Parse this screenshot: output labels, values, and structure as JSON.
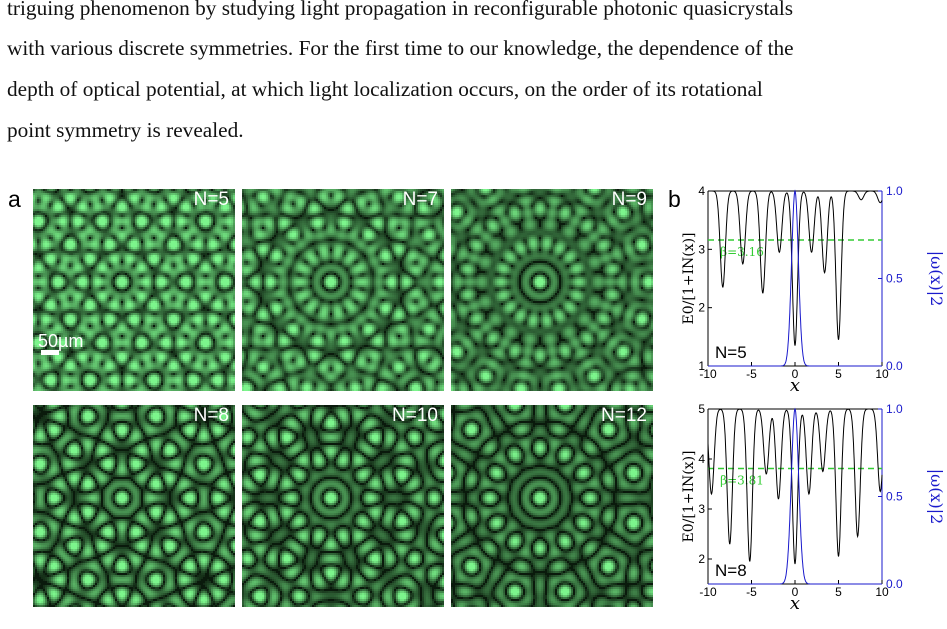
{
  "paragraph": {
    "lines": [
      "triguing phenomenon by studying light propagation in reconfigurable photonic quasicrystals",
      "with various discrete symmetries. For the first time to our knowledge, the dependence of the",
      "depth of optical potential, at which light localization occurs, on the order of its rotational",
      "point symmetry is revealed."
    ]
  },
  "figure": {
    "panel_a_letter": "a",
    "panel_b_letter": "b",
    "scale_bar_label": "50µm",
    "tiles": [
      {
        "label": "N=5",
        "symmetry": 5
      },
      {
        "label": "N=7",
        "symmetry": 7
      },
      {
        "label": "N=9",
        "symmetry": 9
      },
      {
        "label": "N=8",
        "symmetry": 8
      },
      {
        "label": "N=10",
        "symmetry": 10
      },
      {
        "label": "N=12",
        "symmetry": 12
      }
    ],
    "colors": {
      "pattern_bright": "#7cf58c",
      "pattern_dark": "#0a1a0c",
      "potential_line": "#000000",
      "mode_line": "#1a1acc",
      "beta_line": "#33cc33"
    }
  },
  "chart_data": [
    {
      "type": "line",
      "panel_label": "N=5",
      "xlabel": "x",
      "ylabel_left": "E0/[1+IN(x)]",
      "ylabel_right": "|ω(x)|2",
      "x_ticks": [
        "-10",
        "-5",
        "0",
        "5",
        "10"
      ],
      "y_left_ticks": [
        "1",
        "2",
        "3",
        "4"
      ],
      "y_right_ticks": [
        "0.0",
        "0.5",
        "1.0"
      ],
      "xlim": [
        -10,
        10
      ],
      "ylim_left": [
        1,
        4
      ],
      "ylim_right": [
        0,
        1
      ],
      "beta_label": "β=3.16",
      "beta_value": 3.16,
      "potential_wells": [
        {
          "x": -8.3,
          "depth": 2.35
        },
        {
          "x": -6.0,
          "depth": 2.75
        },
        {
          "x": -3.7,
          "depth": 2.25
        },
        {
          "x": -1.8,
          "depth": 2.95
        },
        {
          "x": 0.0,
          "depth": 1.35
        },
        {
          "x": 1.9,
          "depth": 2.95
        },
        {
          "x": 3.4,
          "depth": 2.6
        },
        {
          "x": 5.0,
          "depth": 1.45
        },
        {
          "x": 7.6,
          "depth": 3.85
        },
        {
          "x": 9.8,
          "depth": 3.8
        }
      ],
      "mode": {
        "center": 0.0,
        "width": 0.55,
        "peak": 1.0
      }
    },
    {
      "type": "line",
      "panel_label": "N=8",
      "xlabel": "x",
      "ylabel_left": "E0/[1+IN(x)]",
      "ylabel_right": "|ω(x)|2",
      "x_ticks": [
        "-10",
        "-5",
        "0",
        "5",
        "10"
      ],
      "y_left_ticks": [
        "2",
        "3",
        "4",
        "5"
      ],
      "y_right_ticks": [
        "0.0",
        "0.5",
        "1.0"
      ],
      "xlim": [
        -10,
        10
      ],
      "ylim_left": [
        1.5,
        5
      ],
      "ylim_right": [
        0,
        1
      ],
      "beta_label": "β=3.81",
      "beta_value": 3.81,
      "potential_wells": [
        {
          "x": -9.6,
          "depth": 3.3
        },
        {
          "x": -7.5,
          "depth": 2.3
        },
        {
          "x": -5.2,
          "depth": 1.95
        },
        {
          "x": -3.3,
          "depth": 3.7
        },
        {
          "x": -1.9,
          "depth": 3.2
        },
        {
          "x": 0.0,
          "depth": 1.9
        },
        {
          "x": 1.6,
          "depth": 3.3
        },
        {
          "x": 3.2,
          "depth": 3.75
        },
        {
          "x": 5.0,
          "depth": 2.05
        },
        {
          "x": 7.2,
          "depth": 2.45
        },
        {
          "x": 9.8,
          "depth": 3.35
        }
      ],
      "mode": {
        "center": 0.0,
        "width": 0.6,
        "peak": 1.0
      }
    }
  ]
}
